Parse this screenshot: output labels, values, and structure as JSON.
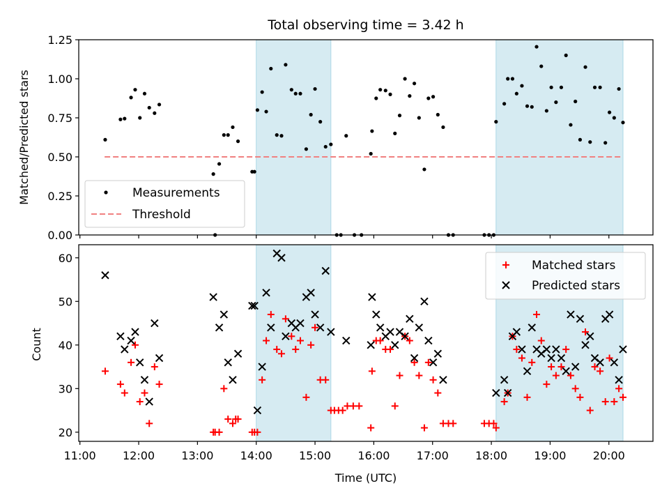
{
  "chart_data": [
    {
      "type": "scatter",
      "panel": "top",
      "title": "Total observing time = 3.42 h",
      "xlabel": "",
      "ylabel": "Matched/Predicted stars",
      "xlim": [
        10.98,
        20.75
      ],
      "ylim": [
        0.0,
        1.25
      ],
      "yticks": [
        0.0,
        0.25,
        0.5,
        0.75,
        1.0,
        1.25
      ],
      "ytick_labels": [
        "0.00",
        "0.25",
        "0.50",
        "0.75",
        "1.00",
        "1.25"
      ],
      "xticks": [
        11,
        12,
        13,
        14,
        15,
        16,
        17,
        18,
        19,
        20
      ],
      "grid": false,
      "legend_position": "lower-left",
      "shaded_intervals": [
        [
          14.0,
          15.27
        ],
        [
          18.08,
          20.24
        ]
      ],
      "threshold": {
        "name": "Threshold",
        "value": 0.5,
        "x_range": [
          11.42,
          20.24
        ],
        "color": "#f08080"
      },
      "series": [
        {
          "name": "Measurements",
          "color": "#000000",
          "marker": "dot",
          "points": [
            [
              11.43,
              0.61
            ],
            [
              11.69,
              0.74
            ],
            [
              11.76,
              0.745
            ],
            [
              11.87,
              0.88
            ],
            [
              11.94,
              0.93
            ],
            [
              12.02,
              0.75
            ],
            [
              12.1,
              0.905
            ],
            [
              12.18,
              0.815
            ],
            [
              12.27,
              0.78
            ],
            [
              12.35,
              0.835
            ],
            [
              13.27,
              0.39
            ],
            [
              13.3,
              0.0
            ],
            [
              13.37,
              0.455
            ],
            [
              13.45,
              0.64
            ],
            [
              13.52,
              0.64
            ],
            [
              13.6,
              0.69
            ],
            [
              13.69,
              0.6
            ],
            [
              13.93,
              0.405
            ],
            [
              13.97,
              0.405
            ],
            [
              14.02,
              0.8
            ],
            [
              14.1,
              0.915
            ],
            [
              14.17,
              0.79
            ],
            [
              14.25,
              1.065
            ],
            [
              14.35,
              0.64
            ],
            [
              14.43,
              0.635
            ],
            [
              14.5,
              1.09
            ],
            [
              14.6,
              0.93
            ],
            [
              14.67,
              0.905
            ],
            [
              14.75,
              0.905
            ],
            [
              14.85,
              0.55
            ],
            [
              14.93,
              0.77
            ],
            [
              15.0,
              0.935
            ],
            [
              15.09,
              0.725
            ],
            [
              15.18,
              0.565
            ],
            [
              15.27,
              0.58
            ],
            [
              15.37,
              0.0
            ],
            [
              15.44,
              0.0
            ],
            [
              15.53,
              0.635
            ],
            [
              15.67,
              0.0
            ],
            [
              15.79,
              0.0
            ],
            [
              15.95,
              0.52
            ],
            [
              15.97,
              0.665
            ],
            [
              16.04,
              0.875
            ],
            [
              16.11,
              0.93
            ],
            [
              16.2,
              0.925
            ],
            [
              16.28,
              0.9
            ],
            [
              16.36,
              0.65
            ],
            [
              16.44,
              0.765
            ],
            [
              16.53,
              1.0
            ],
            [
              16.61,
              0.89
            ],
            [
              16.69,
              0.97
            ],
            [
              16.77,
              0.75
            ],
            [
              16.86,
              0.42
            ],
            [
              16.93,
              0.875
            ],
            [
              17.01,
              0.885
            ],
            [
              17.09,
              0.77
            ],
            [
              17.18,
              0.69
            ],
            [
              17.27,
              0.0
            ],
            [
              17.35,
              0.0
            ],
            [
              17.88,
              0.0
            ],
            [
              17.96,
              0.0
            ],
            [
              18.04,
              0.0
            ],
            [
              18.08,
              0.725
            ],
            [
              18.22,
              0.84
            ],
            [
              18.28,
              1.0
            ],
            [
              18.36,
              1.0
            ],
            [
              18.43,
              0.905
            ],
            [
              18.52,
              0.955
            ],
            [
              18.61,
              0.825
            ],
            [
              18.69,
              0.82
            ],
            [
              18.77,
              1.205
            ],
            [
              18.85,
              1.08
            ],
            [
              18.94,
              0.795
            ],
            [
              19.02,
              0.945
            ],
            [
              19.1,
              0.85
            ],
            [
              19.19,
              0.945
            ],
            [
              19.27,
              1.15
            ],
            [
              19.35,
              0.705
            ],
            [
              19.43,
              0.855
            ],
            [
              19.51,
              0.61
            ],
            [
              19.6,
              1.075
            ],
            [
              19.68,
              0.595
            ],
            [
              19.76,
              0.945
            ],
            [
              19.85,
              0.945
            ],
            [
              19.94,
              0.59
            ],
            [
              20.01,
              0.785
            ],
            [
              20.09,
              0.75
            ],
            [
              20.17,
              0.935
            ],
            [
              20.24,
              0.72
            ]
          ]
        }
      ]
    },
    {
      "type": "scatter",
      "panel": "bottom",
      "title": "",
      "xlabel": "Time (UTC)",
      "ylabel": "Count",
      "xlim": [
        10.98,
        20.75
      ],
      "ylim": [
        17.9,
        63.0
      ],
      "yticks": [
        20,
        30,
        40,
        50,
        60
      ],
      "xticks": [
        11,
        12,
        13,
        14,
        15,
        16,
        17,
        18,
        19,
        20
      ],
      "xtick_labels": [
        "11:00",
        "12:00",
        "13:00",
        "14:00",
        "15:00",
        "16:00",
        "17:00",
        "18:00",
        "19:00",
        "20:00"
      ],
      "grid": false,
      "legend_position": "upper-right",
      "shaded_intervals": [
        [
          14.0,
          15.27
        ],
        [
          18.08,
          20.24
        ]
      ],
      "series": [
        {
          "name": "Matched stars",
          "color": "#ff0000",
          "marker": "plus",
          "points": [
            [
              11.43,
              34
            ],
            [
              11.69,
              31
            ],
            [
              11.76,
              29
            ],
            [
              11.87,
              36
            ],
            [
              11.94,
              40
            ],
            [
              12.02,
              27
            ],
            [
              12.1,
              29
            ],
            [
              12.18,
              22
            ],
            [
              12.27,
              35
            ],
            [
              12.35,
              31
            ],
            [
              13.27,
              20
            ],
            [
              13.3,
              20
            ],
            [
              13.37,
              20
            ],
            [
              13.45,
              30
            ],
            [
              13.52,
              23
            ],
            [
              13.6,
              22
            ],
            [
              13.65,
              23
            ],
            [
              13.69,
              23
            ],
            [
              13.93,
              20
            ],
            [
              13.97,
              20
            ],
            [
              14.02,
              20
            ],
            [
              14.1,
              32
            ],
            [
              14.17,
              41
            ],
            [
              14.25,
              47
            ],
            [
              14.35,
              39
            ],
            [
              14.43,
              38
            ],
            [
              14.5,
              46
            ],
            [
              14.6,
              42
            ],
            [
              14.67,
              39
            ],
            [
              14.75,
              41
            ],
            [
              14.85,
              28
            ],
            [
              14.93,
              40
            ],
            [
              15.0,
              44
            ],
            [
              15.09,
              32
            ],
            [
              15.18,
              32
            ],
            [
              15.27,
              25
            ],
            [
              15.33,
              25
            ],
            [
              15.4,
              25
            ],
            [
              15.47,
              25
            ],
            [
              15.55,
              26
            ],
            [
              15.65,
              26
            ],
            [
              15.75,
              26
            ],
            [
              15.95,
              21
            ],
            [
              15.97,
              34
            ],
            [
              16.04,
              41
            ],
            [
              16.11,
              41
            ],
            [
              16.2,
              39
            ],
            [
              16.28,
              39
            ],
            [
              16.36,
              26
            ],
            [
              16.44,
              33
            ],
            [
              16.53,
              42
            ],
            [
              16.61,
              41
            ],
            [
              16.69,
              36
            ],
            [
              16.77,
              33
            ],
            [
              16.86,
              21
            ],
            [
              16.93,
              36
            ],
            [
              17.01,
              32
            ],
            [
              17.09,
              29
            ],
            [
              17.18,
              22
            ],
            [
              17.27,
              22
            ],
            [
              17.35,
              22
            ],
            [
              17.88,
              22
            ],
            [
              17.96,
              22
            ],
            [
              18.04,
              22
            ],
            [
              18.08,
              21
            ],
            [
              18.22,
              27
            ],
            [
              18.28,
              29
            ],
            [
              18.36,
              42
            ],
            [
              18.43,
              39
            ],
            [
              18.52,
              37
            ],
            [
              18.61,
              28
            ],
            [
              18.69,
              36
            ],
            [
              18.77,
              47
            ],
            [
              18.85,
              41
            ],
            [
              18.94,
              31
            ],
            [
              19.02,
              35
            ],
            [
              19.1,
              33
            ],
            [
              19.19,
              35
            ],
            [
              19.27,
              39
            ],
            [
              19.35,
              33
            ],
            [
              19.43,
              30
            ],
            [
              19.51,
              28
            ],
            [
              19.6,
              43
            ],
            [
              19.68,
              25
            ],
            [
              19.76,
              35
            ],
            [
              19.85,
              34
            ],
            [
              19.94,
              27
            ],
            [
              20.01,
              37
            ],
            [
              20.09,
              27
            ],
            [
              20.17,
              30
            ],
            [
              20.24,
              28
            ]
          ]
        },
        {
          "name": "Predicted stars",
          "color": "#000000",
          "marker": "x",
          "points": [
            [
              11.43,
              56
            ],
            [
              11.69,
              42
            ],
            [
              11.76,
              39
            ],
            [
              11.87,
              41
            ],
            [
              11.94,
              43
            ],
            [
              12.02,
              36
            ],
            [
              12.1,
              32
            ],
            [
              12.18,
              27
            ],
            [
              12.27,
              45
            ],
            [
              12.35,
              37
            ],
            [
              13.27,
              51
            ],
            [
              13.37,
              44
            ],
            [
              13.45,
              47
            ],
            [
              13.52,
              36
            ],
            [
              13.6,
              32
            ],
            [
              13.69,
              38
            ],
            [
              13.93,
              49
            ],
            [
              13.97,
              49
            ],
            [
              14.02,
              25
            ],
            [
              14.1,
              35
            ],
            [
              14.17,
              52
            ],
            [
              14.25,
              44
            ],
            [
              14.35,
              61
            ],
            [
              14.43,
              60
            ],
            [
              14.5,
              42
            ],
            [
              14.6,
              45
            ],
            [
              14.67,
              44
            ],
            [
              14.75,
              45
            ],
            [
              14.85,
              51
            ],
            [
              14.93,
              52
            ],
            [
              15.0,
              47
            ],
            [
              15.09,
              44
            ],
            [
              15.18,
              57
            ],
            [
              15.27,
              43
            ],
            [
              15.53,
              41
            ],
            [
              15.95,
              40
            ],
            [
              15.97,
              51
            ],
            [
              16.04,
              47
            ],
            [
              16.11,
              44
            ],
            [
              16.2,
              42
            ],
            [
              16.28,
              43
            ],
            [
              16.36,
              40
            ],
            [
              16.44,
              43
            ],
            [
              16.53,
              42
            ],
            [
              16.61,
              46
            ],
            [
              16.69,
              37
            ],
            [
              16.77,
              44
            ],
            [
              16.86,
              50
            ],
            [
              16.93,
              41
            ],
            [
              17.01,
              36
            ],
            [
              17.09,
              38
            ],
            [
              17.18,
              32
            ],
            [
              18.08,
              29
            ],
            [
              18.22,
              32
            ],
            [
              18.28,
              29
            ],
            [
              18.36,
              42
            ],
            [
              18.43,
              43
            ],
            [
              18.52,
              39
            ],
            [
              18.61,
              34
            ],
            [
              18.69,
              44
            ],
            [
              18.77,
              39
            ],
            [
              18.85,
              38
            ],
            [
              18.94,
              39
            ],
            [
              19.02,
              37
            ],
            [
              19.1,
              39
            ],
            [
              19.19,
              37
            ],
            [
              19.27,
              34
            ],
            [
              19.35,
              47
            ],
            [
              19.43,
              35
            ],
            [
              19.51,
              46
            ],
            [
              19.6,
              40
            ],
            [
              19.68,
              42
            ],
            [
              19.76,
              37
            ],
            [
              19.85,
              36
            ],
            [
              19.94,
              46
            ],
            [
              20.01,
              47
            ],
            [
              20.09,
              36
            ],
            [
              20.17,
              32
            ],
            [
              20.24,
              39
            ]
          ]
        }
      ]
    }
  ]
}
